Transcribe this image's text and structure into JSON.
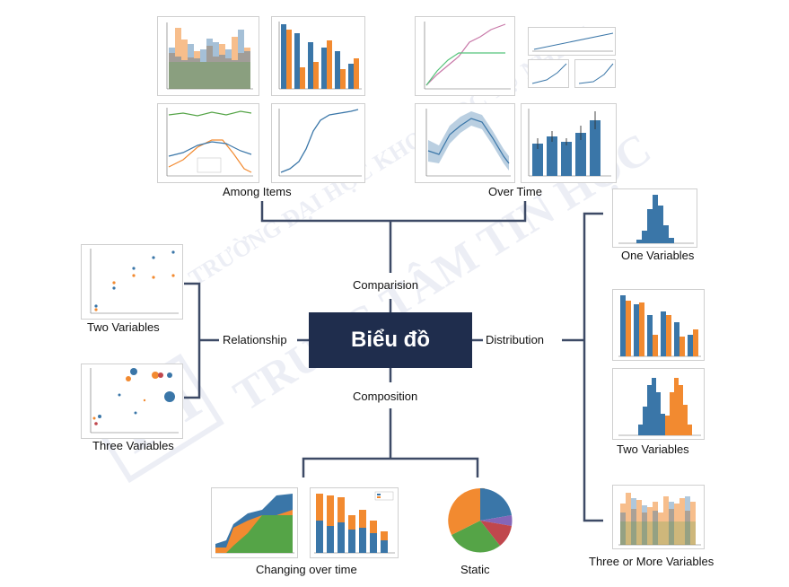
{
  "center": {
    "title": "Biểu đồ"
  },
  "branches": {
    "comparison": "Comparision",
    "composition": "Composition",
    "relationship": "Relationship",
    "distribution": "Distribution"
  },
  "groups": {
    "among_items": "Among Items",
    "over_time": "Over Time",
    "two_variables_rel": "Two Variables",
    "three_variables_rel": "Three Variables",
    "one_variable_dist": "One Variables",
    "two_variables_dist": "Two Variables",
    "three_more_dist": "Three or More Variables",
    "changing_over_time": "Changing over time",
    "static": "Static"
  },
  "watermark": {
    "line1": "TRƯỜNG ĐẠI HỌC KHOA HỌC TỰ NHIÊN",
    "line2": "TRUNG TÂM TIN HỌC",
    "logo": "TH"
  },
  "colors": {
    "center_bg": "#1f2d4d",
    "connector": "#3d4a66",
    "blue": "#3a76a8",
    "orange": "#f28a30",
    "green": "#55a447",
    "red": "#c0474d",
    "purple": "#8566b8"
  }
}
